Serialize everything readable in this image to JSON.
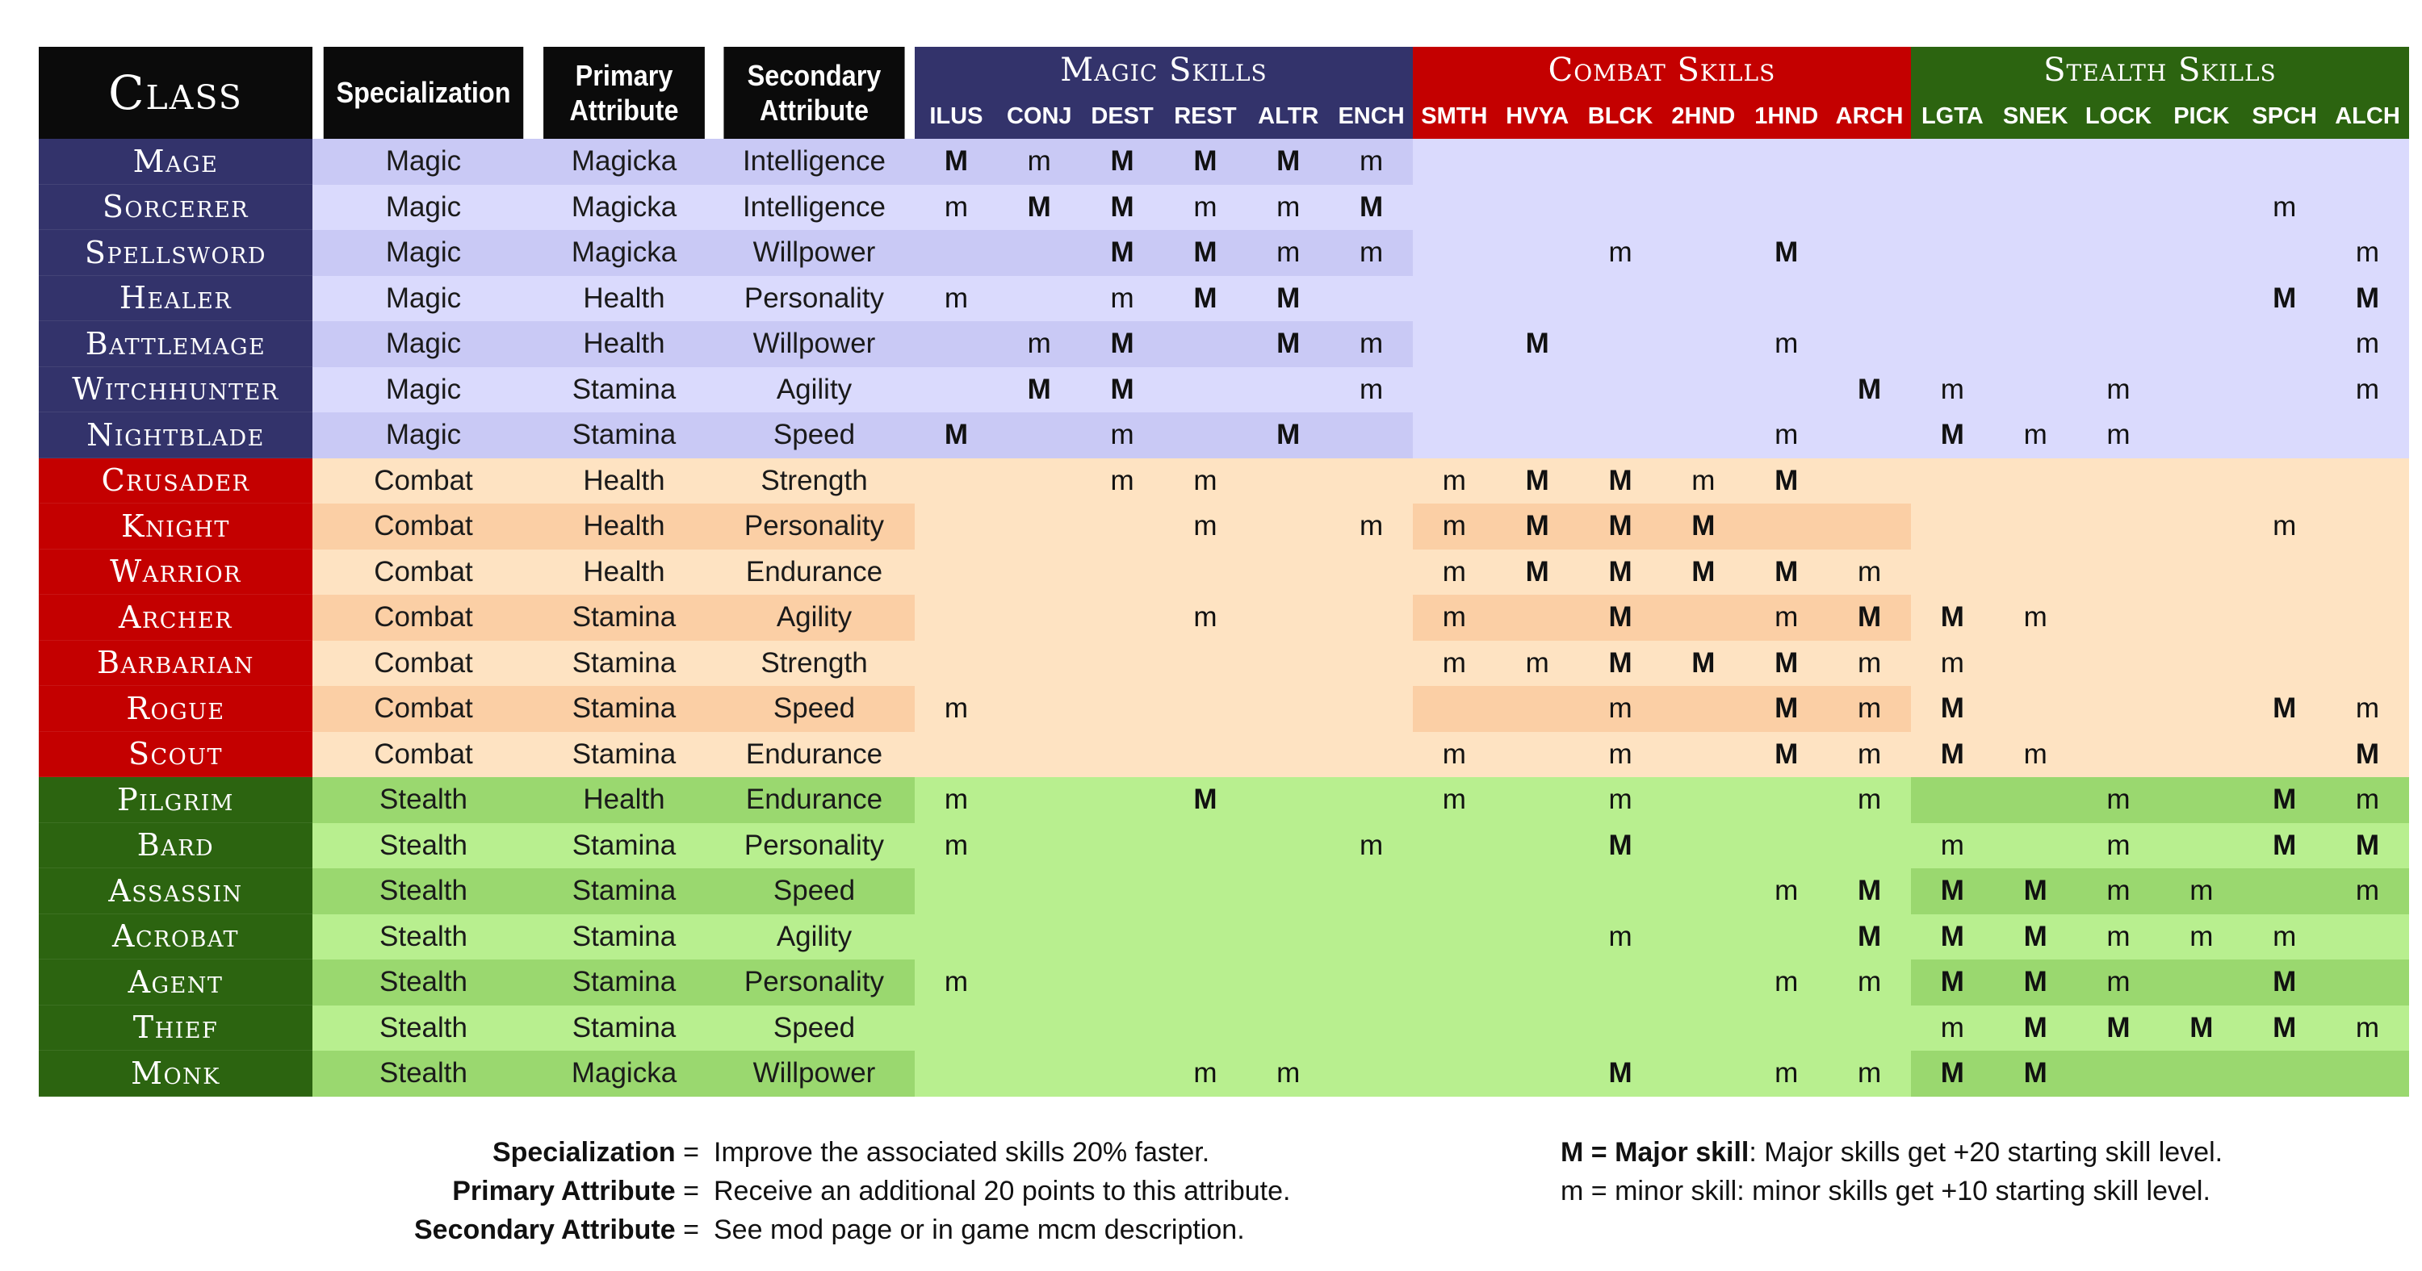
{
  "header": {
    "class_label": "Class",
    "specialization_label": "Specialization",
    "primary_label": "Primary Attribute",
    "secondary_label": "Secondary Attribute"
  },
  "groups": [
    {
      "name": "Magic Skills",
      "key": "magic",
      "skills": [
        "ILUS",
        "CONJ",
        "DEST",
        "REST",
        "ALTR",
        "ENCH"
      ]
    },
    {
      "name": "Combat Skills",
      "key": "combat",
      "skills": [
        "SMTH",
        "HVYA",
        "BLCK",
        "2HND",
        "1HND",
        "ARCH"
      ]
    },
    {
      "name": "Stealth Skills",
      "key": "stealth",
      "skills": [
        "LGTA",
        "SNEK",
        "LOCK",
        "PICK",
        "SPCH",
        "ALCH"
      ]
    }
  ],
  "colors": {
    "Magic": {
      "dark": "#33336b",
      "tint_a": "#c9c9f5",
      "tint_b": "#dadafd"
    },
    "Combat": {
      "dark": "#c40000",
      "tint_a": "#fbcfa5",
      "tint_b": "#fee3c2"
    },
    "Stealth": {
      "dark": "#2c6410",
      "tint_a": "#9ad86f",
      "tint_b": "#b8ef8f"
    }
  },
  "classes": [
    {
      "name": "Mage",
      "spec": "Magic",
      "primary": "Magicka",
      "secondary": "Intelligence",
      "skills": [
        "M",
        "m",
        "M",
        "M",
        "M",
        "m",
        "",
        "",
        "",
        "",
        "",
        "",
        "",
        "",
        "",
        "",
        "",
        ""
      ]
    },
    {
      "name": "Sorcerer",
      "spec": "Magic",
      "primary": "Magicka",
      "secondary": "Intelligence",
      "skills": [
        "m",
        "M",
        "M",
        "m",
        "m",
        "M",
        "",
        "",
        "",
        "",
        "",
        "",
        "",
        "",
        "",
        "",
        "m",
        ""
      ]
    },
    {
      "name": "Spellsword",
      "spec": "Magic",
      "primary": "Magicka",
      "secondary": "Willpower",
      "skills": [
        "",
        "",
        "M",
        "M",
        "m",
        "m",
        "",
        "",
        "m",
        "",
        "M",
        "",
        "",
        "",
        "",
        "",
        "",
        "m"
      ]
    },
    {
      "name": "Healer",
      "spec": "Magic",
      "primary": "Health",
      "secondary": "Personality",
      "skills": [
        "m",
        "",
        "m",
        "M",
        "M",
        "",
        "",
        "",
        "",
        "",
        "",
        "",
        "",
        "",
        "",
        "",
        "M",
        "M"
      ]
    },
    {
      "name": "Battlemage",
      "spec": "Magic",
      "primary": "Health",
      "secondary": "Willpower",
      "skills": [
        "",
        "m",
        "M",
        "",
        "M",
        "m",
        "",
        "M",
        "",
        "",
        "m",
        "",
        "",
        "",
        "",
        "",
        "",
        "m"
      ]
    },
    {
      "name": "Witchhunter",
      "spec": "Magic",
      "primary": "Stamina",
      "secondary": "Agility",
      "skills": [
        "",
        "M",
        "M",
        "",
        "",
        "m",
        "",
        "",
        "",
        "",
        "",
        "M",
        "m",
        "",
        "m",
        "",
        "",
        "m"
      ]
    },
    {
      "name": "Nightblade",
      "spec": "Magic",
      "primary": "Stamina",
      "secondary": "Speed",
      "skills": [
        "M",
        "",
        "m",
        "",
        "M",
        "",
        "",
        "",
        "",
        "",
        "m",
        "",
        "M",
        "m",
        "m",
        "",
        "",
        ""
      ]
    },
    {
      "name": "Crusader",
      "spec": "Combat",
      "primary": "Health",
      "secondary": "Strength",
      "skills": [
        "",
        "",
        "m",
        "m",
        "",
        "",
        "m",
        "M",
        "M",
        "m",
        "M",
        "",
        "",
        "",
        "",
        "",
        "",
        ""
      ]
    },
    {
      "name": "Knight",
      "spec": "Combat",
      "primary": "Health",
      "secondary": "Personality",
      "skills": [
        "",
        "",
        "",
        "m",
        "",
        "m",
        "m",
        "M",
        "M",
        "M",
        "",
        "",
        "",
        "",
        "",
        "",
        "m",
        ""
      ]
    },
    {
      "name": "Warrior",
      "spec": "Combat",
      "primary": "Health",
      "secondary": "Endurance",
      "skills": [
        "",
        "",
        "",
        "",
        "",
        "",
        "m",
        "M",
        "M",
        "M",
        "M",
        "m",
        "",
        "",
        "",
        "",
        "",
        ""
      ]
    },
    {
      "name": "Archer",
      "spec": "Combat",
      "primary": "Stamina",
      "secondary": "Agility",
      "skills": [
        "",
        "",
        "",
        "m",
        "",
        "",
        "m",
        "",
        "M",
        "",
        "m",
        "M",
        "M",
        "m",
        "",
        "",
        "",
        ""
      ]
    },
    {
      "name": "Barbarian",
      "spec": "Combat",
      "primary": "Stamina",
      "secondary": "Strength",
      "skills": [
        "",
        "",
        "",
        "",
        "",
        "",
        "m",
        "m",
        "M",
        "M",
        "M",
        "m",
        "m",
        "",
        "",
        "",
        "",
        ""
      ]
    },
    {
      "name": "Rogue",
      "spec": "Combat",
      "primary": "Stamina",
      "secondary": "Speed",
      "skills": [
        "m",
        "",
        "",
        "",
        "",
        "",
        "",
        "",
        "m",
        "",
        "M",
        "m",
        "M",
        "",
        "",
        "",
        "M",
        "m"
      ]
    },
    {
      "name": "Scout",
      "spec": "Combat",
      "primary": "Stamina",
      "secondary": "Endurance",
      "skills": [
        "",
        "",
        "",
        "",
        "",
        "",
        "m",
        "",
        "m",
        "",
        "M",
        "m",
        "M",
        "m",
        "",
        "",
        "",
        "M"
      ]
    },
    {
      "name": "Pilgrim",
      "spec": "Stealth",
      "primary": "Health",
      "secondary": "Endurance",
      "skills": [
        "m",
        "",
        "",
        "M",
        "",
        "",
        "m",
        "",
        "m",
        "",
        "",
        "m",
        "",
        "",
        "m",
        "",
        "M",
        "m"
      ]
    },
    {
      "name": "Bard",
      "spec": "Stealth",
      "primary": "Stamina",
      "secondary": "Personality",
      "skills": [
        "m",
        "",
        "",
        "",
        "",
        "m",
        "",
        "",
        "M",
        "",
        "",
        "",
        "m",
        "",
        "m",
        "",
        "M",
        "M"
      ]
    },
    {
      "name": "Assassin",
      "spec": "Stealth",
      "primary": "Stamina",
      "secondary": "Speed",
      "skills": [
        "",
        "",
        "",
        "",
        "",
        "",
        "",
        "",
        "",
        "",
        "m",
        "M",
        "M",
        "M",
        "m",
        "m",
        "",
        "m"
      ]
    },
    {
      "name": "Acrobat",
      "spec": "Stealth",
      "primary": "Stamina",
      "secondary": "Agility",
      "skills": [
        "",
        "",
        "",
        "",
        "",
        "",
        "",
        "",
        "m",
        "",
        "",
        "M",
        "M",
        "M",
        "m",
        "m",
        "m",
        ""
      ]
    },
    {
      "name": "Agent",
      "spec": "Stealth",
      "primary": "Stamina",
      "secondary": "Personality",
      "skills": [
        "m",
        "",
        "",
        "",
        "",
        "",
        "",
        "",
        "",
        "",
        "m",
        "m",
        "M",
        "M",
        "m",
        "",
        "M",
        ""
      ]
    },
    {
      "name": "Thief",
      "spec": "Stealth",
      "primary": "Stamina",
      "secondary": "Speed",
      "skills": [
        "",
        "",
        "",
        "",
        "",
        "",
        "",
        "",
        "",
        "",
        "",
        "",
        "m",
        "M",
        "M",
        "M",
        "M",
        "m"
      ]
    },
    {
      "name": "Monk",
      "spec": "Stealth",
      "primary": "Magicka",
      "secondary": "Willpower",
      "skills": [
        "",
        "",
        "",
        "m",
        "m",
        "",
        "",
        "",
        "M",
        "",
        "m",
        "m",
        "M",
        "M",
        "",
        "",
        "",
        ""
      ]
    }
  ],
  "legend": {
    "left": [
      {
        "term": "Specialization",
        "eq": " =",
        "definition": "Improve the associated skills 20% faster."
      },
      {
        "term": "Primary Attribute",
        "eq": " =",
        "definition": "Receive an additional 20 points to this attribute."
      },
      {
        "term": "Secondary Attribute",
        "eq": " =",
        "definition": "See mod page or in game mcm description."
      }
    ],
    "right": [
      {
        "term": "M = Major skill",
        "rest": ": Major skills get +20 starting skill level."
      },
      {
        "term": "m = minor skill",
        "rest": ":  minor skills get +10 starting skill level."
      }
    ]
  }
}
